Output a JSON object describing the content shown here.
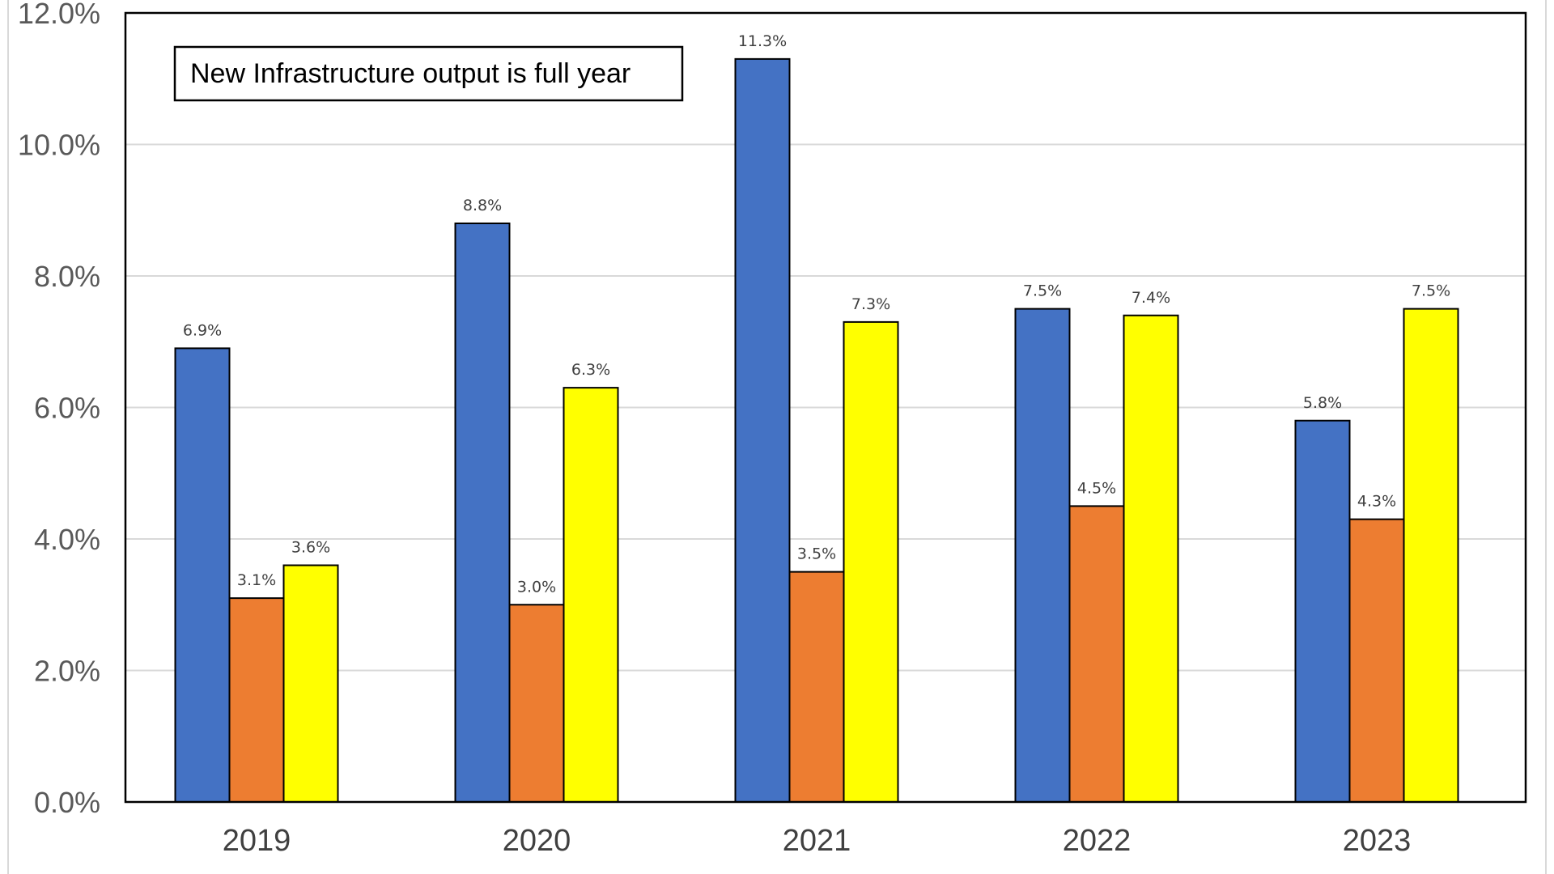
{
  "chart_data": {
    "type": "bar",
    "categories": [
      "2019",
      "2020",
      "2021",
      "2022",
      "2023"
    ],
    "series": [
      {
        "color": "#4472C4",
        "values": [
          6.9,
          8.8,
          11.3,
          7.5,
          5.8
        ],
        "labels": [
          "6.9%",
          "8.8%",
          "11.3%",
          "7.5%",
          "5.8%"
        ]
      },
      {
        "color": "#ED7D31",
        "values": [
          3.1,
          3.0,
          3.5,
          4.5,
          4.3
        ],
        "labels": [
          "3.1%",
          "3.0%",
          "3.5%",
          "4.5%",
          "4.3%"
        ]
      },
      {
        "color": "#FFFF00",
        "values": [
          3.6,
          6.3,
          7.3,
          7.4,
          7.5
        ],
        "labels": [
          "3.6%",
          "6.3%",
          "7.3%",
          "7.4%",
          "7.5%"
        ]
      }
    ],
    "ylim": [
      0,
      12
    ],
    "yticks": [
      "0.0%",
      "2.0%",
      "4.0%",
      "6.0%",
      "8.0%",
      "10.0%",
      "12.0%"
    ],
    "grid": true,
    "annotation": "New Infrastructure output is full year"
  }
}
